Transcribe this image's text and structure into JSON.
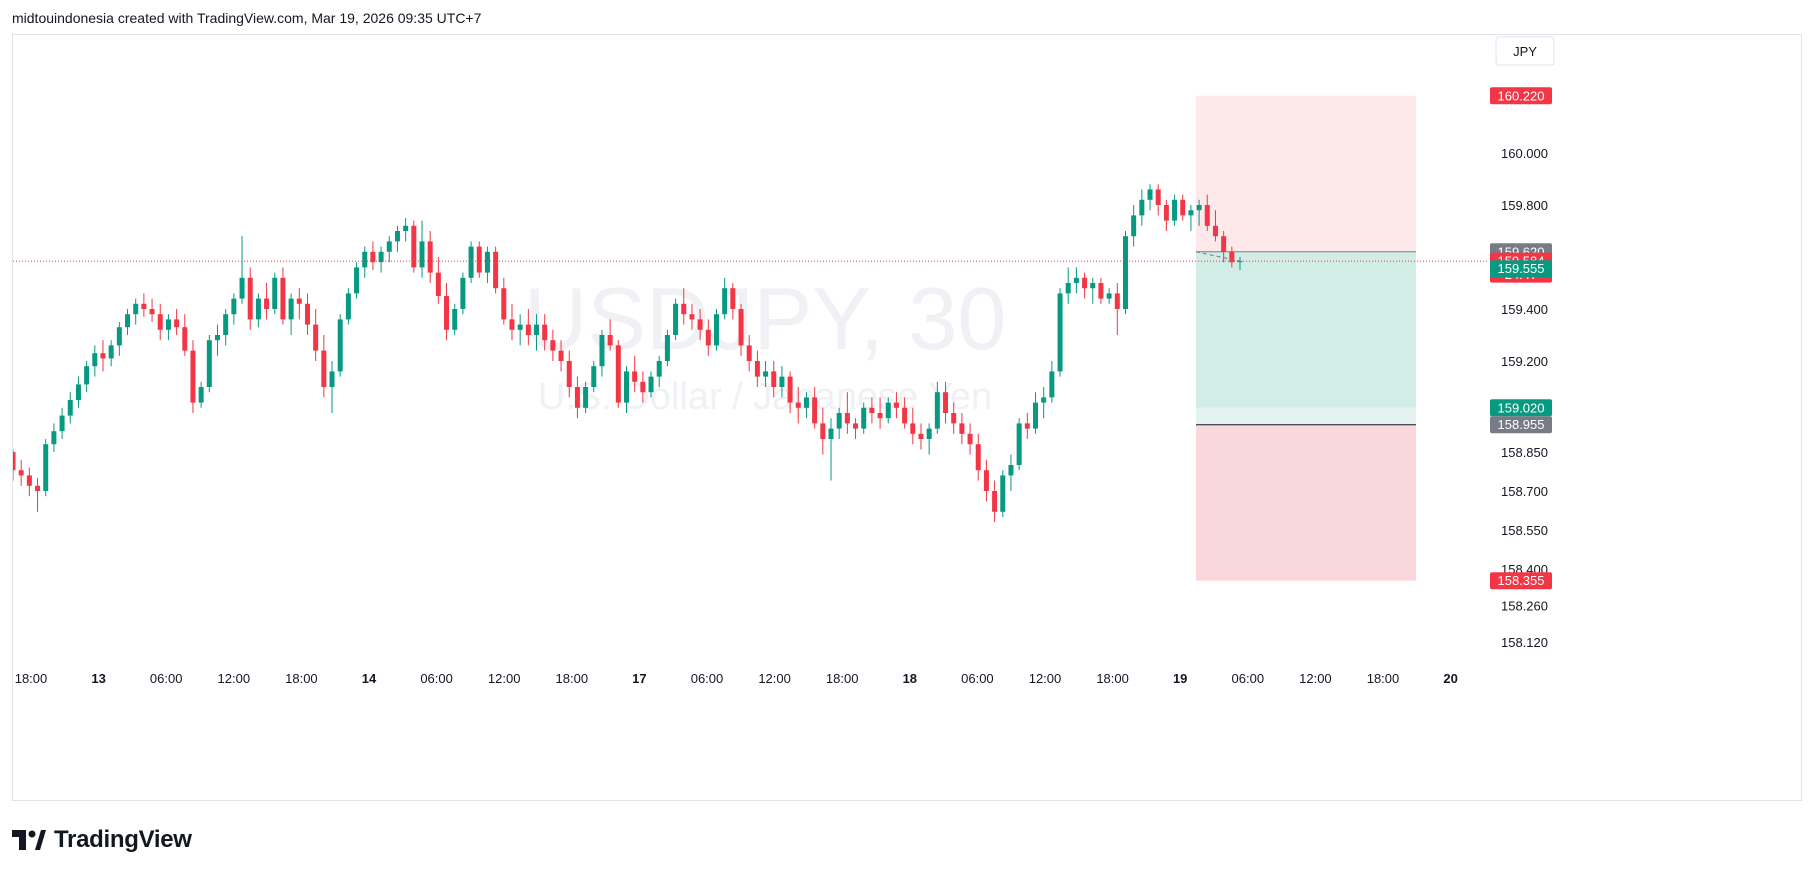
{
  "header": {
    "attribution": "midtouindonesia created with TradingView.com, Mar 19, 2026 09:35 UTC+7"
  },
  "footer": {
    "brand": "TradingView",
    "logo_icon": "tradingview-logo-icon"
  },
  "colors": {
    "up": "#089981",
    "down": "#f23645",
    "text": "#131722",
    "axis_text": "#131722",
    "watermark": "#f0f1f4",
    "price_line": "#f23645",
    "stop_zone": "#fde3e5",
    "target_zone": "#d2ece6",
    "label_gray": "#787b86"
  },
  "chart_data": {
    "type": "candlestick",
    "symbol": "USDJPY, 30",
    "description": "U.S. Dollar / Japanese Yen",
    "currency": "JPY",
    "y_ticks": [
      "160.000",
      "159.800",
      "159.400",
      "159.200",
      "158.850",
      "158.700",
      "158.550",
      "158.400",
      "158.260",
      "158.120"
    ],
    "x_ticks": [
      {
        "label": "18:00",
        "bold": false
      },
      {
        "label": "13",
        "bold": true
      },
      {
        "label": "06:00",
        "bold": false
      },
      {
        "label": "12:00",
        "bold": false
      },
      {
        "label": "18:00",
        "bold": false
      },
      {
        "label": "14",
        "bold": true
      },
      {
        "label": "06:00",
        "bold": false
      },
      {
        "label": "12:00",
        "bold": false
      },
      {
        "label": "18:00",
        "bold": false
      },
      {
        "label": "17",
        "bold": true
      },
      {
        "label": "06:00",
        "bold": false
      },
      {
        "label": "12:00",
        "bold": false
      },
      {
        "label": "18:00",
        "bold": false
      },
      {
        "label": "18",
        "bold": true
      },
      {
        "label": "06:00",
        "bold": false
      },
      {
        "label": "12:00",
        "bold": false
      },
      {
        "label": "18:00",
        "bold": false
      },
      {
        "label": "19",
        "bold": true
      },
      {
        "label": "06:00",
        "bold": false
      },
      {
        "label": "12:00",
        "bold": false
      },
      {
        "label": "18:00",
        "bold": false
      },
      {
        "label": "20",
        "bold": true
      }
    ],
    "price_labels": [
      {
        "price": 160.22,
        "text": "160.220",
        "kind": "stop"
      },
      {
        "price": 159.62,
        "text": "159.620",
        "kind": "entry"
      },
      {
        "price": 159.584,
        "text": "159.584",
        "sub": "24:47",
        "kind": "last"
      },
      {
        "price": 159.555,
        "text": "159.555",
        "kind": "pnl"
      },
      {
        "price": 159.02,
        "text": "159.020",
        "kind": "target"
      },
      {
        "price": 158.955,
        "text": "158.955",
        "kind": "gray"
      },
      {
        "price": 158.355,
        "text": "158.355",
        "kind": "stop"
      }
    ],
    "last_price": 159.584,
    "position": {
      "type": "short",
      "entry": 159.62,
      "stop": 160.22,
      "targets": [
        159.02,
        158.955,
        158.355
      ]
    },
    "candles": [
      [
        158.85,
        158.86,
        158.74,
        158.78
      ],
      [
        158.78,
        158.82,
        158.72,
        158.76
      ],
      [
        158.76,
        158.79,
        158.68,
        158.72
      ],
      [
        158.72,
        158.75,
        158.62,
        158.7
      ],
      [
        158.7,
        158.9,
        158.68,
        158.88
      ],
      [
        158.88,
        158.96,
        158.85,
        158.93
      ],
      [
        158.93,
        159.02,
        158.9,
        158.99
      ],
      [
        158.99,
        159.08,
        158.96,
        159.05
      ],
      [
        159.05,
        159.14,
        159.02,
        159.11
      ],
      [
        159.11,
        159.2,
        159.08,
        159.18
      ],
      [
        159.18,
        159.26,
        159.14,
        159.23
      ],
      [
        159.23,
        159.28,
        159.16,
        159.21
      ],
      [
        159.21,
        159.28,
        159.18,
        159.26
      ],
      [
        159.26,
        159.35,
        159.22,
        159.33
      ],
      [
        159.33,
        159.4,
        159.3,
        159.38
      ],
      [
        159.38,
        159.44,
        159.34,
        159.42
      ],
      [
        159.42,
        159.46,
        159.37,
        159.4
      ],
      [
        159.4,
        159.44,
        159.35,
        159.38
      ],
      [
        159.38,
        159.42,
        159.28,
        159.32
      ],
      [
        159.32,
        159.38,
        159.28,
        159.36
      ],
      [
        159.36,
        159.4,
        159.3,
        159.33
      ],
      [
        159.33,
        159.38,
        159.22,
        159.24
      ],
      [
        159.24,
        159.28,
        159.0,
        159.04
      ],
      [
        159.04,
        159.12,
        159.02,
        159.1
      ],
      [
        159.1,
        159.3,
        159.08,
        159.28
      ],
      [
        159.28,
        159.34,
        159.22,
        159.3
      ],
      [
        159.3,
        159.4,
        159.26,
        159.38
      ],
      [
        159.38,
        159.46,
        159.34,
        159.44
      ],
      [
        159.44,
        159.68,
        159.42,
        159.52
      ],
      [
        159.52,
        159.56,
        159.32,
        159.36
      ],
      [
        159.36,
        159.46,
        159.33,
        159.44
      ],
      [
        159.44,
        159.5,
        159.36,
        159.4
      ],
      [
        159.4,
        159.54,
        159.38,
        159.52
      ],
      [
        159.52,
        159.56,
        159.34,
        159.36
      ],
      [
        159.36,
        159.46,
        159.3,
        159.44
      ],
      [
        159.44,
        159.48,
        159.36,
        159.42
      ],
      [
        159.42,
        159.46,
        159.3,
        159.34
      ],
      [
        159.34,
        159.4,
        159.2,
        159.24
      ],
      [
        159.24,
        159.3,
        159.06,
        159.1
      ],
      [
        159.1,
        159.2,
        159.0,
        159.16
      ],
      [
        159.16,
        159.38,
        159.14,
        159.36
      ],
      [
        159.36,
        159.48,
        159.34,
        159.46
      ],
      [
        159.46,
        159.58,
        159.44,
        159.56
      ],
      [
        159.56,
        159.64,
        159.52,
        159.62
      ],
      [
        159.62,
        159.66,
        159.55,
        159.58
      ],
      [
        159.58,
        159.64,
        159.54,
        159.62
      ],
      [
        159.62,
        159.68,
        159.58,
        159.66
      ],
      [
        159.66,
        159.72,
        159.62,
        159.7
      ],
      [
        159.7,
        159.75,
        159.66,
        159.72
      ],
      [
        159.72,
        159.74,
        159.54,
        159.56
      ],
      [
        159.56,
        159.74,
        159.52,
        159.66
      ],
      [
        159.66,
        159.7,
        159.5,
        159.54
      ],
      [
        159.54,
        159.6,
        159.42,
        159.45
      ],
      [
        159.45,
        159.5,
        159.28,
        159.32
      ],
      [
        159.32,
        159.42,
        159.3,
        159.4
      ],
      [
        159.4,
        159.54,
        159.38,
        159.52
      ],
      [
        159.52,
        159.66,
        159.5,
        159.64
      ],
      [
        159.64,
        159.66,
        159.52,
        159.54
      ],
      [
        159.54,
        159.64,
        159.5,
        159.62
      ],
      [
        159.62,
        159.64,
        159.46,
        159.48
      ],
      [
        159.48,
        159.52,
        159.34,
        159.36
      ],
      [
        159.36,
        159.42,
        159.28,
        159.32
      ],
      [
        159.32,
        159.38,
        159.26,
        159.34
      ],
      [
        159.34,
        159.4,
        159.26,
        159.3
      ],
      [
        159.3,
        159.38,
        159.24,
        159.34
      ],
      [
        159.34,
        159.38,
        159.24,
        159.28
      ],
      [
        159.28,
        159.32,
        159.2,
        159.24
      ],
      [
        159.24,
        159.28,
        159.16,
        159.2
      ],
      [
        159.2,
        159.24,
        159.06,
        159.1
      ],
      [
        159.1,
        159.14,
        158.98,
        159.02
      ],
      [
        159.02,
        159.12,
        159.0,
        159.1
      ],
      [
        159.1,
        159.2,
        159.08,
        159.18
      ],
      [
        159.18,
        159.32,
        159.14,
        159.3
      ],
      [
        159.3,
        159.36,
        159.24,
        159.26
      ],
      [
        159.26,
        159.28,
        159.02,
        159.04
      ],
      [
        159.04,
        159.18,
        159.0,
        159.16
      ],
      [
        159.16,
        159.22,
        159.08,
        159.12
      ],
      [
        159.12,
        159.16,
        159.04,
        159.08
      ],
      [
        159.08,
        159.16,
        159.06,
        159.14
      ],
      [
        159.14,
        159.22,
        159.1,
        159.2
      ],
      [
        159.2,
        159.32,
        159.18,
        159.3
      ],
      [
        159.3,
        159.44,
        159.28,
        159.42
      ],
      [
        159.42,
        159.48,
        159.34,
        159.38
      ],
      [
        159.38,
        159.42,
        159.32,
        159.36
      ],
      [
        159.36,
        159.4,
        159.28,
        159.32
      ],
      [
        159.32,
        159.36,
        159.22,
        159.26
      ],
      [
        159.26,
        159.4,
        159.24,
        159.38
      ],
      [
        159.38,
        159.52,
        159.36,
        159.48
      ],
      [
        159.48,
        159.5,
        159.36,
        159.4
      ],
      [
        159.4,
        159.42,
        159.22,
        159.26
      ],
      [
        159.26,
        159.3,
        159.16,
        159.2
      ],
      [
        159.2,
        159.24,
        159.1,
        159.14
      ],
      [
        159.14,
        159.2,
        159.1,
        159.16
      ],
      [
        159.16,
        159.2,
        159.06,
        159.1
      ],
      [
        159.1,
        159.18,
        159.06,
        159.14
      ],
      [
        159.14,
        159.16,
        159.0,
        159.04
      ],
      [
        159.04,
        159.1,
        158.96,
        159.02
      ],
      [
        159.02,
        159.08,
        158.98,
        159.06
      ],
      [
        159.06,
        159.1,
        158.94,
        158.96
      ],
      [
        158.96,
        159.02,
        158.84,
        158.9
      ],
      [
        158.9,
        158.98,
        158.74,
        158.94
      ],
      [
        158.94,
        159.02,
        158.9,
        159.0
      ],
      [
        159.0,
        159.08,
        158.92,
        158.96
      ],
      [
        158.96,
        158.98,
        158.9,
        158.94
      ],
      [
        158.94,
        159.04,
        158.92,
        159.02
      ],
      [
        159.02,
        159.06,
        158.96,
        159.0
      ],
      [
        159.0,
        159.06,
        158.94,
        158.98
      ],
      [
        158.98,
        159.06,
        158.96,
        159.04
      ],
      [
        159.04,
        159.08,
        158.98,
        159.02
      ],
      [
        159.02,
        159.06,
        158.94,
        158.96
      ],
      [
        158.96,
        159.02,
        158.88,
        158.92
      ],
      [
        158.92,
        158.96,
        158.86,
        158.9
      ],
      [
        158.9,
        158.96,
        158.84,
        158.94
      ],
      [
        158.94,
        159.12,
        158.92,
        159.08
      ],
      [
        159.08,
        159.12,
        158.96,
        159.0
      ],
      [
        159.0,
        159.04,
        158.92,
        158.96
      ],
      [
        158.96,
        159.0,
        158.88,
        158.92
      ],
      [
        158.92,
        158.96,
        158.84,
        158.88
      ],
      [
        158.88,
        158.92,
        158.74,
        158.78
      ],
      [
        158.78,
        158.82,
        158.66,
        158.7
      ],
      [
        158.7,
        158.74,
        158.58,
        158.62
      ],
      [
        158.62,
        158.78,
        158.6,
        158.76
      ],
      [
        158.76,
        158.84,
        158.7,
        158.8
      ],
      [
        158.8,
        158.98,
        158.78,
        158.96
      ],
      [
        158.96,
        159.0,
        158.9,
        158.94
      ],
      [
        158.94,
        159.08,
        158.92,
        159.04
      ],
      [
        159.04,
        159.1,
        158.98,
        159.06
      ],
      [
        159.06,
        159.2,
        159.04,
        159.16
      ],
      [
        159.16,
        159.48,
        159.14,
        159.46
      ],
      [
        159.46,
        159.56,
        159.42,
        159.5
      ],
      [
        159.5,
        159.56,
        159.46,
        159.52
      ],
      [
        159.52,
        159.54,
        159.44,
        159.48
      ],
      [
        159.48,
        159.52,
        159.42,
        159.5
      ],
      [
        159.5,
        159.52,
        159.42,
        159.44
      ],
      [
        159.44,
        159.48,
        159.42,
        159.46
      ],
      [
        159.46,
        159.5,
        159.3,
        159.4
      ],
      [
        159.4,
        159.7,
        159.38,
        159.68
      ],
      [
        159.68,
        159.8,
        159.64,
        159.76
      ],
      [
        159.76,
        159.86,
        159.72,
        159.82
      ],
      [
        159.82,
        159.88,
        159.78,
        159.86
      ],
      [
        159.86,
        159.88,
        159.76,
        159.8
      ],
      [
        159.8,
        159.82,
        159.7,
        159.74
      ],
      [
        159.74,
        159.84,
        159.72,
        159.82
      ],
      [
        159.82,
        159.84,
        159.74,
        159.76
      ],
      [
        159.76,
        159.8,
        159.7,
        159.78
      ],
      [
        159.78,
        159.82,
        159.72,
        159.8
      ],
      [
        159.8,
        159.84,
        159.7,
        159.72
      ],
      [
        159.72,
        159.78,
        159.66,
        159.68
      ],
      [
        159.68,
        159.7,
        159.58,
        159.62
      ],
      [
        159.62,
        159.64,
        159.56,
        159.58
      ],
      [
        159.58,
        159.6,
        159.55,
        159.584
      ]
    ]
  }
}
